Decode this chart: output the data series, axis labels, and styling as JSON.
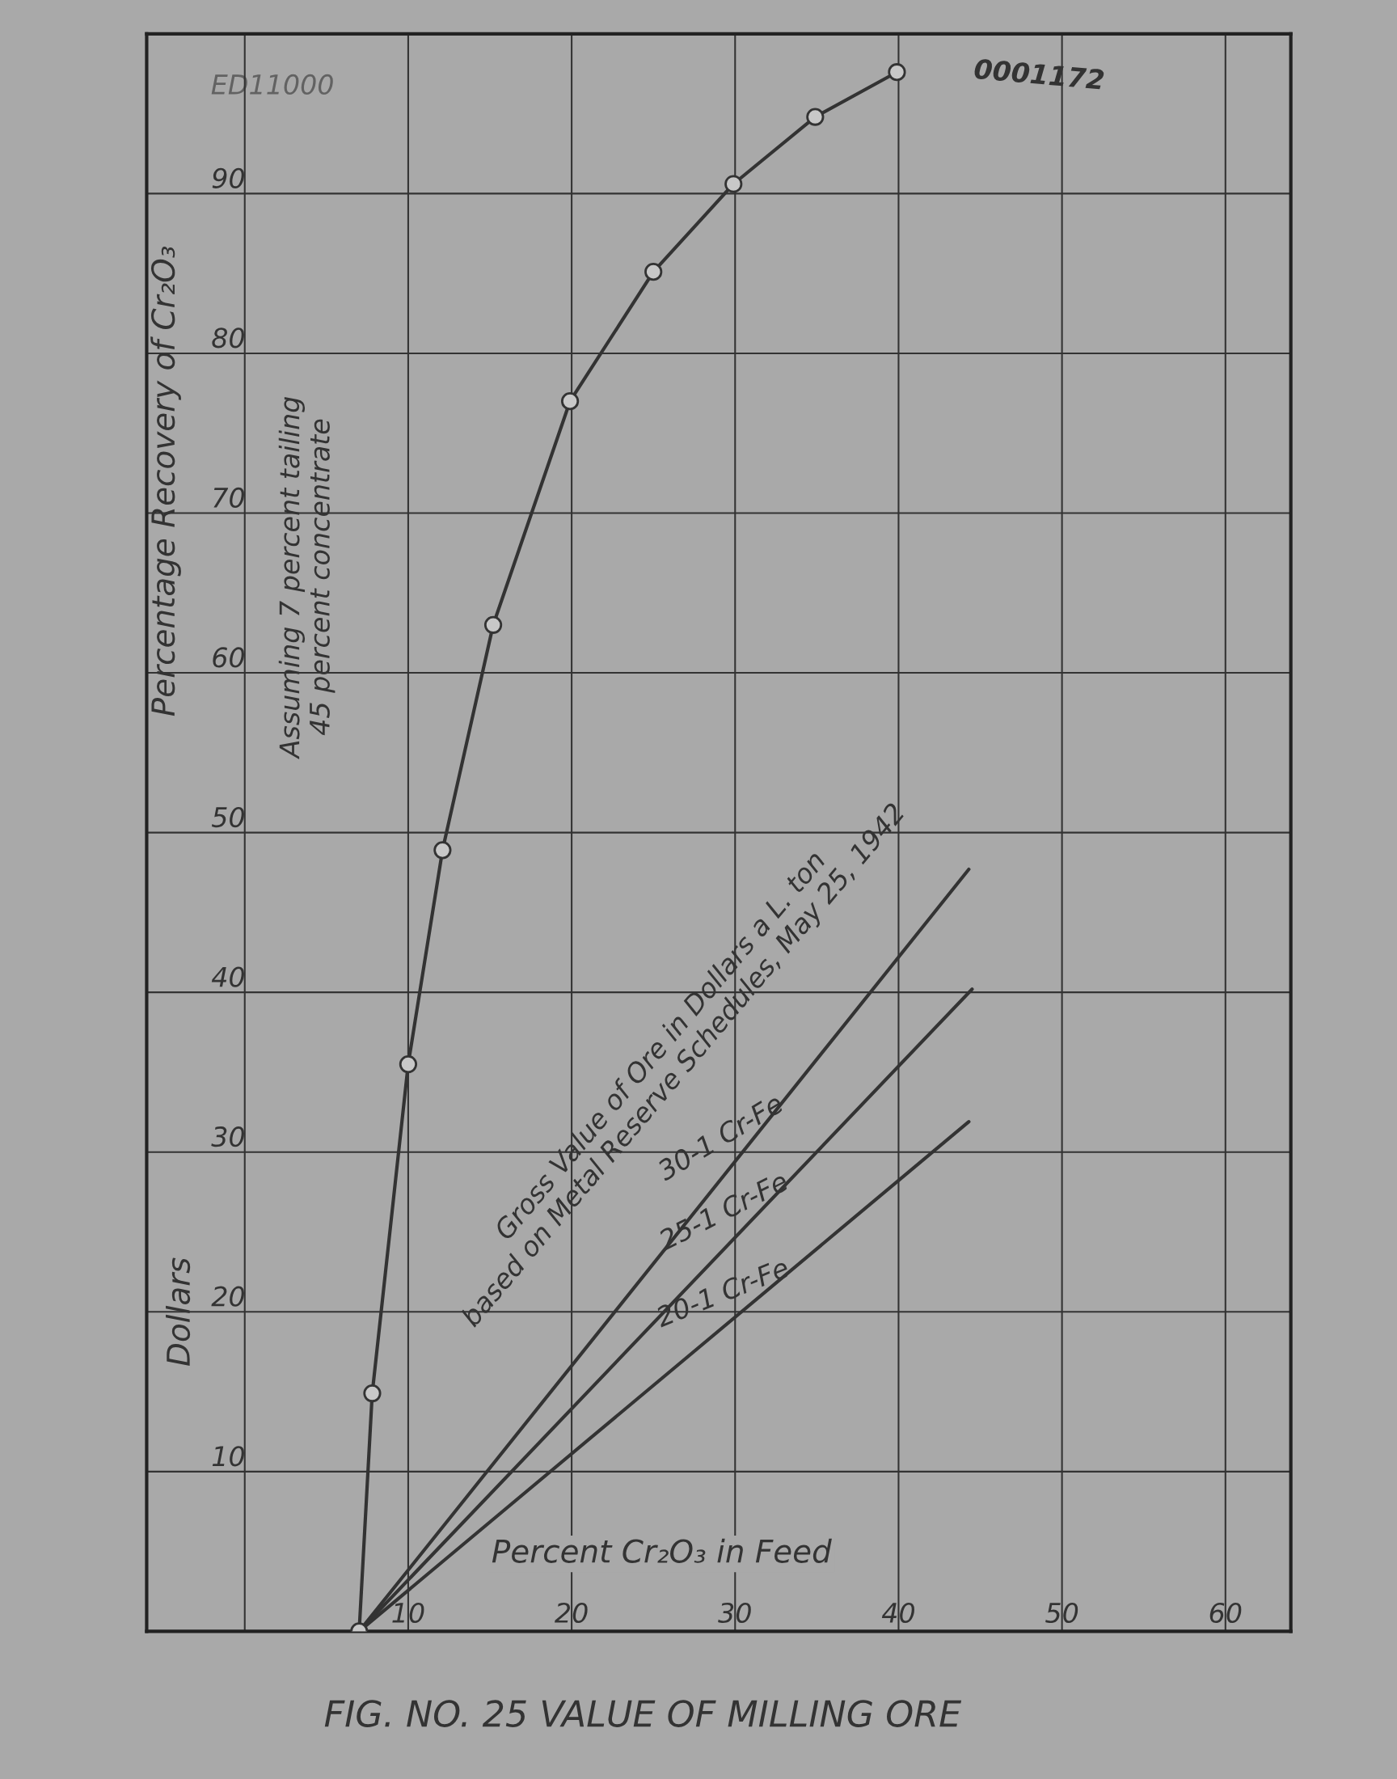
{
  "chart_data": {
    "type": "line",
    "title": "FIG. NO. 25 VALUE OF MILLING ORE",
    "xlabel": "Percent Cr₂O₃ in Feed",
    "ylabel": "Percentage Recovery of Cr₂O₃",
    "xlim": [
      -6,
      64
    ],
    "ylim": [
      0,
      100
    ],
    "xticks": [
      {
        "value": 0,
        "label": null
      },
      10,
      20,
      30,
      40,
      50,
      60
    ],
    "yticks": [
      10,
      20,
      30,
      40,
      50,
      60,
      70,
      80,
      90
    ],
    "grid": true,
    "legend": false,
    "annotations": [
      "Dollars",
      "Assuming 7 percent tailing\n45 percent concentrate",
      "Gross Value of Ore in Dollars a L. ton\nbased on Metal Reserve Schedules, May 25, 1942",
      "0001172",
      "ED11000"
    ],
    "series": [
      {
        "color": "#333333",
        "marker": "circle",
        "x": [
          7,
          7.8,
          10,
          12.1,
          15.2,
          19.9,
          25.0,
          29.9,
          34.9,
          39.9
        ],
        "values": [
          0,
          14.9,
          35.5,
          48.9,
          63.0,
          77.0,
          85.1,
          90.6,
          94.8,
          97.6
        ]
      },
      {
        "name": "30-1 Cr-Fe",
        "color": "#333333",
        "marker": "none",
        "x": [
          7,
          44.3
        ],
        "values": [
          0,
          47.7
        ]
      },
      {
        "name": "25-1 Cr-Fe",
        "color": "#333333",
        "marker": "none",
        "x": [
          7,
          44.5
        ],
        "values": [
          0,
          40.2
        ]
      },
      {
        "name": "20-1 Cr-Fe",
        "color": "#333333",
        "marker": "none",
        "x": [
          7,
          44.3
        ],
        "values": [
          0,
          31.9
        ]
      }
    ]
  }
}
